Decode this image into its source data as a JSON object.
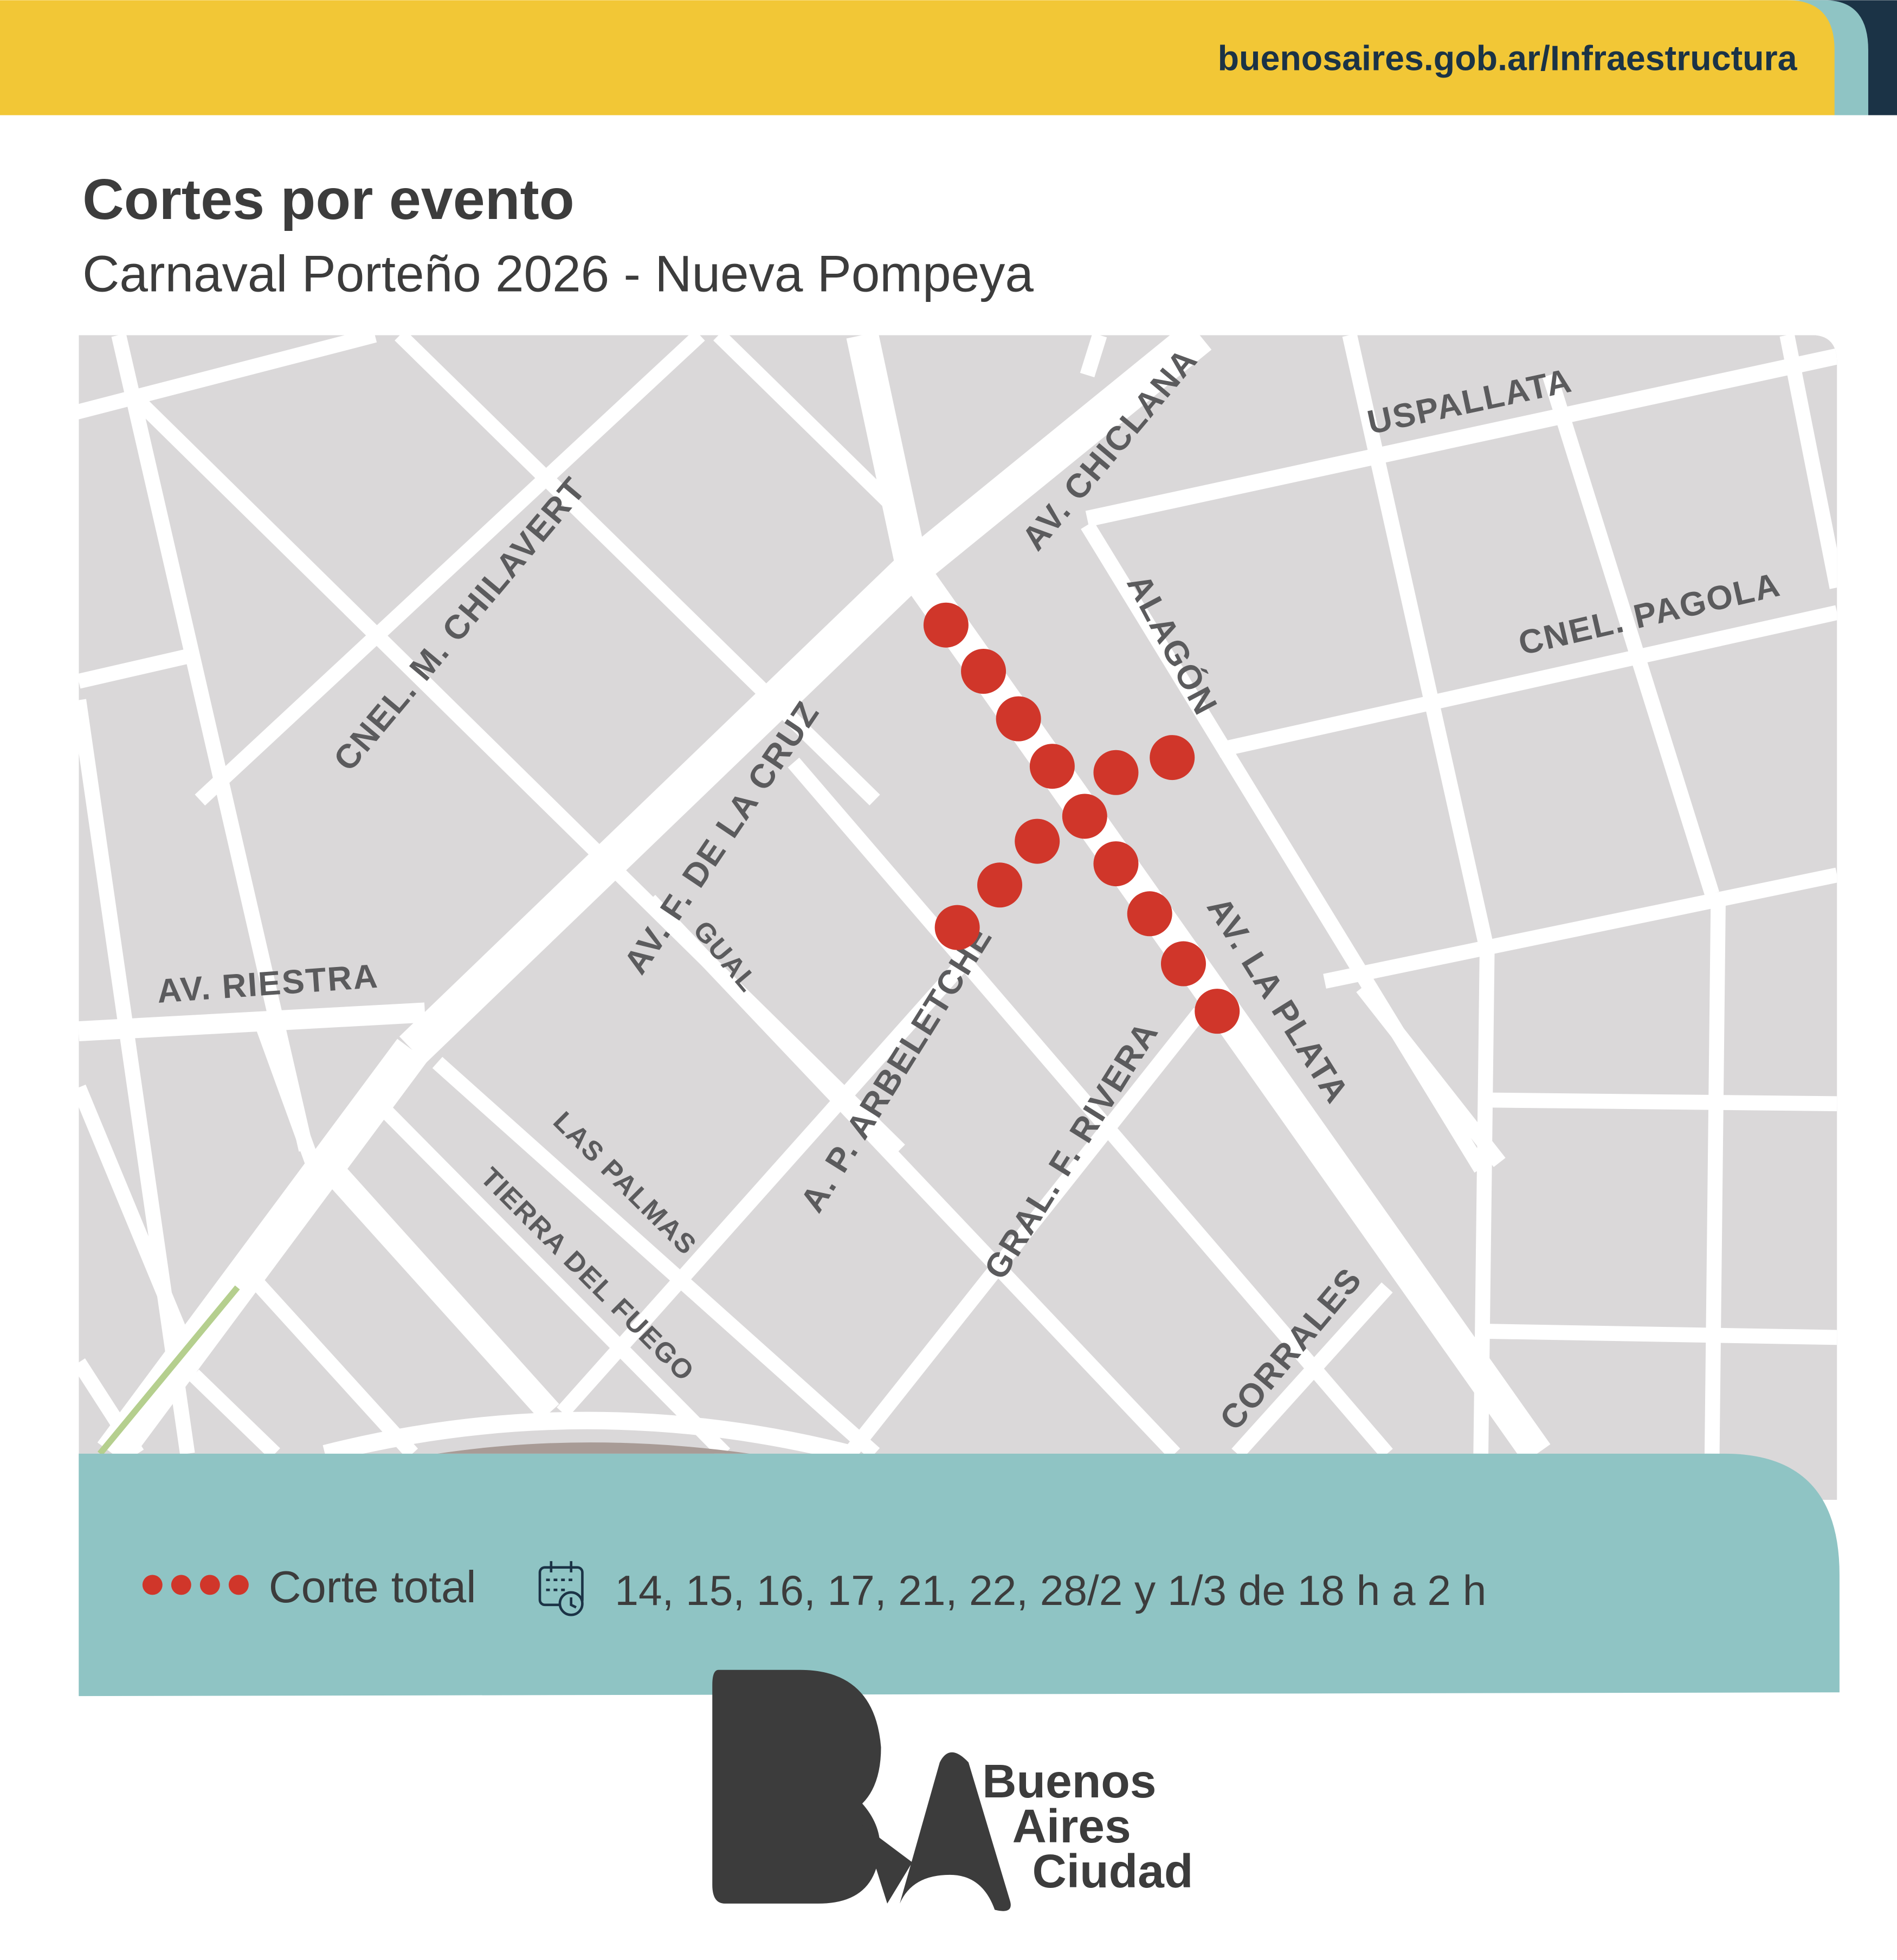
{
  "header": {
    "url": "buenosaires.gob.ar/Infraestructura",
    "colors": {
      "yellow": "#F2C736",
      "teal": "#8FC4C4",
      "navy": "#1B3346"
    }
  },
  "title": "Cortes por evento",
  "subtitle": "Carnaval Porteño 2026 - Nueva Pompeya",
  "map": {
    "streets": {
      "chiclana": "AV. CHICLANA",
      "uspallata": "USPALLATA",
      "chilavert": "CNEL. M. CHILAVERT",
      "alagon": "ALAGÓN",
      "pagola": "CNEL. PAGOLA",
      "cruz": "AV. F. DE LA CRUZ",
      "gual": "GUAL",
      "riestra": "AV. RIESTRA",
      "la_plata": "AV. LA PLATA",
      "arbeletche": "A. P. ARBELETCHE",
      "rivera": "GRAL. F. RIVERA",
      "las_palmas": "LAS PALMAS",
      "tierra_del_fuego": "TIERRA DEL FUEGO",
      "corrales": "CORRALES"
    },
    "cut_color": "#D0362A",
    "block_color": "#DAD8D9"
  },
  "legend": {
    "cut_label": "Corte total",
    "icon": "calendar-clock-icon",
    "schedule": "14, 15, 16, 17, 21, 22, 28/2 y 1/3 de 18 h a 2 h"
  },
  "logo": {
    "mark": "BA",
    "line1": "Buenos",
    "line2": "Aires",
    "line3": "Ciudad"
  }
}
